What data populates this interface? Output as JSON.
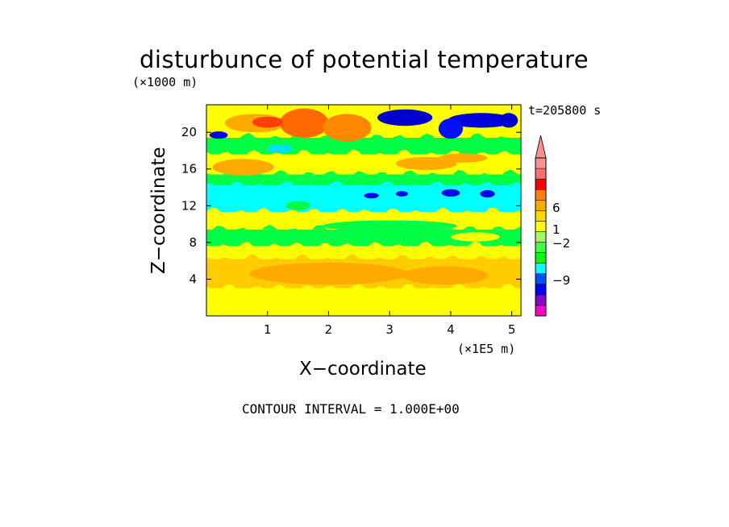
{
  "chart_data": {
    "type": "heatmap",
    "title": "disturbunce of potential temperature",
    "xlabel": "X−coordinate",
    "ylabel": "Z−coordinate",
    "x_unit": "(×1E5 m)",
    "y_unit": "(×1000 m)",
    "time_label": "t=205800 s",
    "contour_interval": "CONTOUR INTERVAL = 1.000E+00",
    "xlim": [
      0,
      5.15
    ],
    "ylim": [
      0,
      23
    ],
    "x_ticks": [
      1,
      2,
      3,
      4,
      5
    ],
    "y_ticks": [
      4,
      8,
      12,
      16,
      20
    ],
    "colorbar": {
      "colors": [
        "#ff00cc",
        "#8b00c8",
        "#0000ff",
        "#0050ff",
        "#00ffff",
        "#00ff00",
        "#40ff40",
        "#a0ff60",
        "#ffff00",
        "#ffd700",
        "#ffaa00",
        "#ff8000",
        "#ff0000",
        "#ff7070",
        "#ff9090"
      ],
      "labels": [
        "−9",
        "−2",
        "1",
        "6"
      ]
    },
    "bands": [
      {
        "z0": 0,
        "z1": 1.2,
        "value": 0,
        "color": "#ffff00"
      },
      {
        "z0": 1.2,
        "z1": 3.0,
        "value": 1,
        "color": "#ffff00"
      },
      {
        "z0": 3.0,
        "z1": 6.2,
        "value": 3,
        "color": "#ffcc00"
      },
      {
        "z0": 6.2,
        "z1": 7.6,
        "value": 1,
        "color": "#ffff00"
      },
      {
        "z0": 7.6,
        "z1": 9.4,
        "value": -1,
        "color": "#00ff44"
      },
      {
        "z0": 9.4,
        "z1": 11.3,
        "value": 0,
        "color": "#ffff00"
      },
      {
        "z0": 11.3,
        "z1": 14.2,
        "value": -2,
        "color": "#00ffff"
      },
      {
        "z0": 14.2,
        "z1": 15.4,
        "value": -1,
        "color": "#00ff44"
      },
      {
        "z0": 15.4,
        "z1": 17.6,
        "value": 1,
        "color": "#ffff00"
      },
      {
        "z0": 17.6,
        "z1": 19.4,
        "value": 0,
        "color": "#00ff44"
      },
      {
        "z0": 19.4,
        "z1": 23,
        "value": 1,
        "color": "#ffff00"
      }
    ],
    "features": [
      {
        "x": 2.0,
        "z": 4.6,
        "rx": 1.3,
        "rz": 1.2,
        "value": 3,
        "color": "#ffaa00"
      },
      {
        "x": 3.9,
        "z": 4.4,
        "rx": 0.7,
        "rz": 1.0,
        "value": 3,
        "color": "#ffaa00"
      },
      {
        "x": 0.6,
        "z": 16.2,
        "rx": 0.5,
        "rz": 0.9,
        "value": 3,
        "color": "#ffaa00"
      },
      {
        "x": 3.0,
        "z": 9.8,
        "rx": 1.1,
        "rz": 0.6,
        "value": -1,
        "color": "#00ff44"
      },
      {
        "x": 0.8,
        "z": 21.0,
        "rx": 0.5,
        "rz": 1.0,
        "value": 2,
        "color": "#ffaa00"
      },
      {
        "x": 1.6,
        "z": 21.0,
        "rx": 0.4,
        "rz": 1.6,
        "value": 5,
        "color": "#ff6a00"
      },
      {
        "x": 2.3,
        "z": 20.5,
        "rx": 0.4,
        "rz": 1.5,
        "value": 4,
        "color": "#ff8800"
      },
      {
        "x": 1.0,
        "z": 21.1,
        "rx": 0.25,
        "rz": 0.6,
        "value": 6,
        "color": "#ff4000"
      },
      {
        "x": 3.25,
        "z": 21.6,
        "rx": 0.45,
        "rz": 0.9,
        "value": -9,
        "color": "#0000cc"
      },
      {
        "x": 4.5,
        "z": 21.3,
        "rx": 0.55,
        "rz": 0.8,
        "value": -6,
        "color": "#0000dd"
      },
      {
        "x": 4.0,
        "z": 20.4,
        "rx": 0.2,
        "rz": 1.1,
        "value": -5,
        "color": "#0010ff"
      },
      {
        "x": 4.95,
        "z": 21.3,
        "rx": 0.15,
        "rz": 0.8,
        "value": -7,
        "color": "#0000cc"
      },
      {
        "x": 0.2,
        "z": 19.7,
        "rx": 0.15,
        "rz": 0.4,
        "value": -5,
        "color": "#0000ee"
      },
      {
        "x": 1.2,
        "z": 18.2,
        "rx": 0.2,
        "rz": 0.5,
        "value": -2,
        "color": "#00ddff"
      },
      {
        "x": 2.7,
        "z": 13.1,
        "rx": 0.12,
        "rz": 0.3,
        "value": -5,
        "color": "#0000ee"
      },
      {
        "x": 3.2,
        "z": 13.3,
        "rx": 0.1,
        "rz": 0.3,
        "value": -5,
        "color": "#0000ee"
      },
      {
        "x": 4.0,
        "z": 13.4,
        "rx": 0.15,
        "rz": 0.4,
        "value": -5,
        "color": "#0000ee"
      },
      {
        "x": 4.6,
        "z": 13.3,
        "rx": 0.12,
        "rz": 0.4,
        "value": -5,
        "color": "#0000ee"
      },
      {
        "x": 3.6,
        "z": 16.6,
        "rx": 0.5,
        "rz": 0.7,
        "value": 2,
        "color": "#ffaa00"
      },
      {
        "x": 4.2,
        "z": 17.2,
        "rx": 0.4,
        "rz": 0.5,
        "value": 2,
        "color": "#ffaa00"
      },
      {
        "x": 1.5,
        "z": 12.0,
        "rx": 0.2,
        "rz": 0.5,
        "value": -1,
        "color": "#00ff44"
      },
      {
        "x": 4.4,
        "z": 8.6,
        "rx": 0.4,
        "rz": 0.5,
        "value": 0,
        "color": "#ffff00"
      }
    ]
  }
}
